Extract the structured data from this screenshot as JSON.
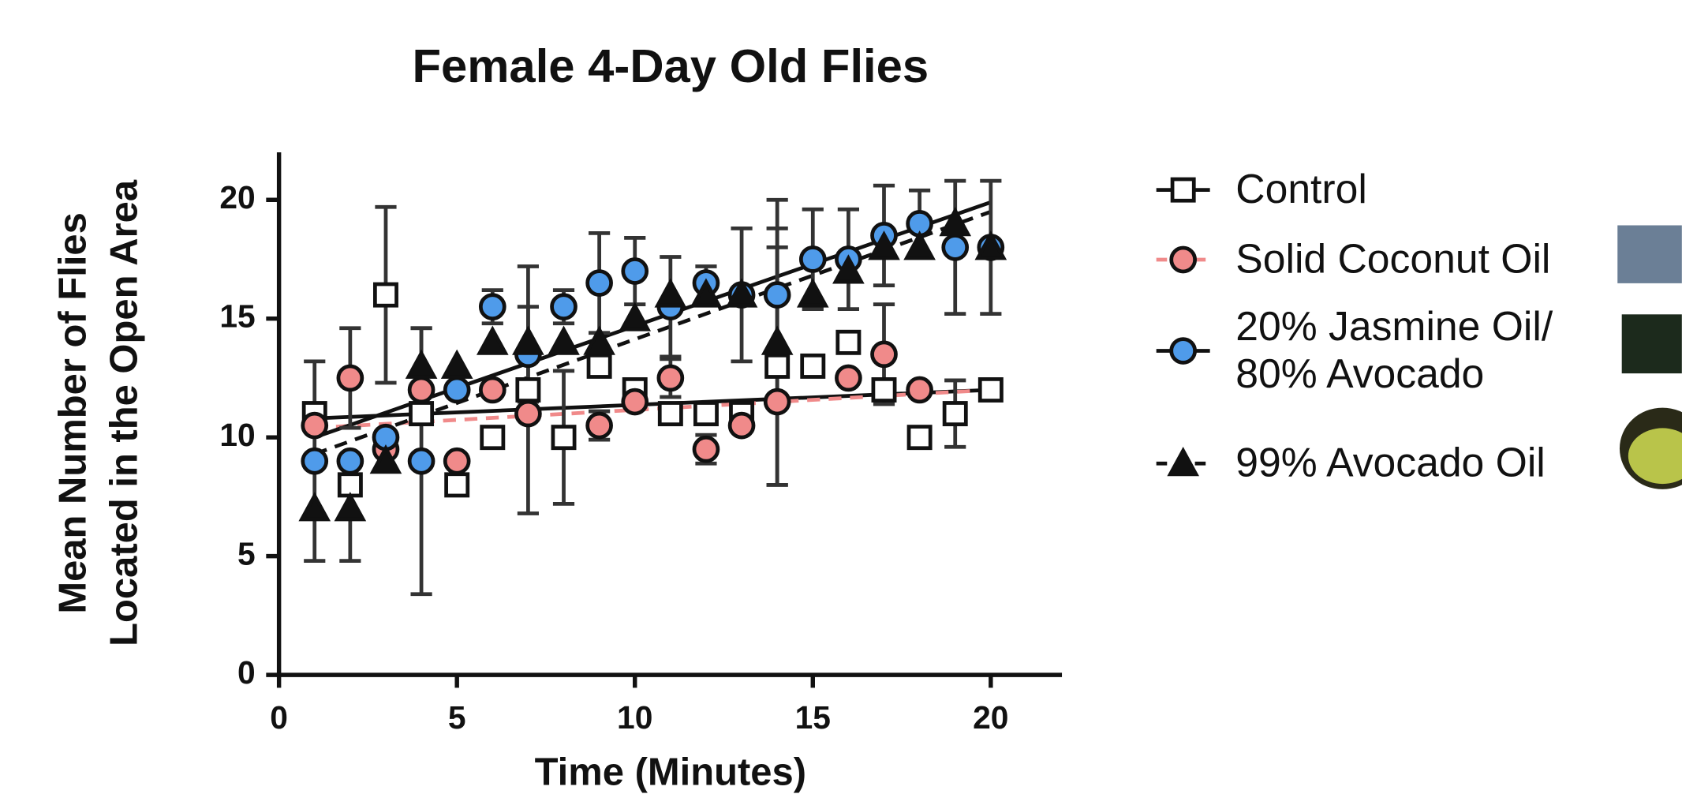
{
  "chart_data": {
    "type": "scatter",
    "title": "Female 4-Day Old Flies",
    "xlabel": "Time (Minutes)",
    "ylabel": [
      "Mean Number of Flies",
      "Located in the Open Area"
    ],
    "x": [
      1,
      2,
      3,
      4,
      5,
      6,
      7,
      8,
      9,
      10,
      11,
      12,
      13,
      14,
      15,
      16,
      17,
      18,
      19,
      20
    ],
    "xlim": [
      0,
      22
    ],
    "xticks": [
      0,
      5,
      10,
      15,
      20
    ],
    "ylim": [
      0,
      22
    ],
    "yticks": [
      0,
      5,
      10,
      15,
      20
    ],
    "fit_x": [
      1,
      20
    ],
    "series": [
      {
        "name": "Control",
        "color": "#ffffff",
        "marker": "square",
        "fit_color": "#111111",
        "fit_dash": false,
        "values": [
          11,
          8,
          16,
          11,
          8,
          10,
          12,
          10,
          13,
          12,
          11,
          11,
          11,
          13,
          13,
          14,
          12,
          10,
          11,
          12
        ],
        "errors": [
          2.2,
          null,
          3.7,
          null,
          null,
          null,
          5.2,
          2.8,
          null,
          null,
          null,
          null,
          null,
          5,
          null,
          null,
          null,
          null,
          1.4,
          null
        ],
        "fit": [
          10.8,
          12
        ]
      },
      {
        "name": "Solid Coconut Oil",
        "color": "#f08a8a",
        "marker": "circle",
        "fit_color": "#f08a8a",
        "fit_dash": true,
        "values": [
          10.5,
          12.5,
          9.5,
          12,
          9,
          12,
          11,
          null,
          10.5,
          11.5,
          12.5,
          9.5,
          10.5,
          11.5,
          null,
          12.5,
          13.5,
          12,
          null,
          null
        ],
        "errors": [
          null,
          2.1,
          null,
          null,
          null,
          null,
          null,
          null,
          0.6,
          null,
          0.8,
          0.6,
          null,
          null,
          null,
          null,
          2.1,
          null,
          null,
          null
        ],
        "fit": [
          10.4,
          12
        ]
      },
      {
        "name": "20% Jasmine Oil/\n80% Avocado",
        "color": "#4f9bea",
        "marker": "circle",
        "fit_color": "#111111",
        "fit_dash": false,
        "values": [
          9,
          9,
          10,
          9,
          12,
          15.5,
          13.5,
          15.5,
          16.5,
          17,
          15.5,
          16.5,
          16,
          16,
          17.5,
          17.5,
          18.5,
          19,
          18,
          18
        ],
        "errors": [
          null,
          null,
          null,
          5.6,
          null,
          0.7,
          2,
          0.7,
          2.1,
          1.4,
          2.1,
          0.7,
          2.8,
          2.8,
          2.1,
          2.1,
          2.1,
          1.4,
          2.8,
          2.8
        ],
        "fit": [
          10,
          19.9
        ]
      },
      {
        "name": "99% Avocado Oil",
        "color": "#111111",
        "marker": "triangle",
        "fit_color": "#111111",
        "fit_dash": true,
        "values": [
          7,
          7,
          9,
          13,
          13,
          14,
          14,
          14,
          14,
          15,
          16,
          16,
          16,
          14,
          16,
          17,
          18,
          18,
          19,
          18
        ],
        "errors": [
          2.2,
          2.2,
          null,
          1.6,
          null,
          null,
          null,
          null,
          null,
          null,
          null,
          null,
          null,
          6,
          null,
          null,
          null,
          null,
          null,
          null
        ],
        "fit": [
          9.3,
          19.5
        ]
      }
    ]
  }
}
